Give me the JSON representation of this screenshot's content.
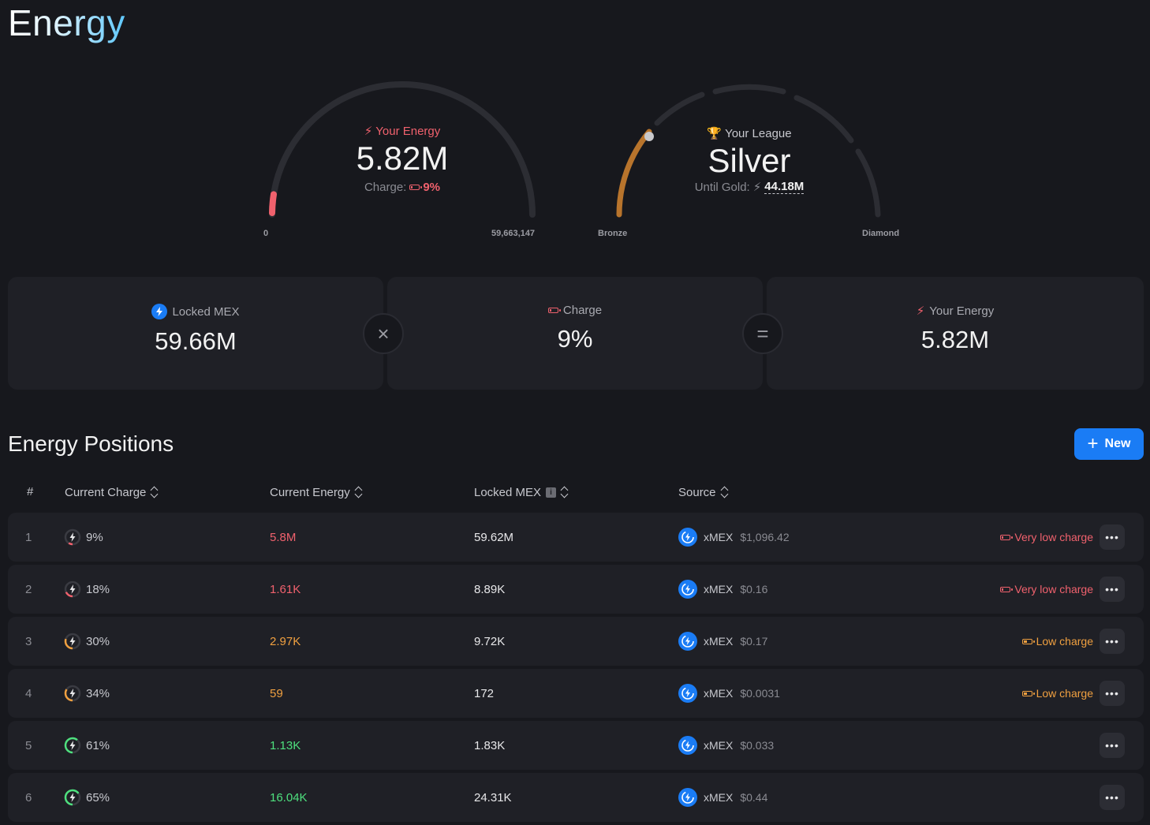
{
  "page": {
    "title": "Energy"
  },
  "energy_gauge": {
    "label": "Your Energy",
    "value": "5.82M",
    "charge_label": "Charge:",
    "charge_value": "9%",
    "charge_fraction": 0.09,
    "min_label": "0",
    "max_label": "59,663,147",
    "colors": {
      "fill": "#f0616d",
      "track": "#2c2d33"
    }
  },
  "league_gauge": {
    "label": "Your League",
    "value": "Silver",
    "until_label": "Until Gold:",
    "until_value": "44.18M",
    "min_label": "Bronze",
    "max_label": "Diamond",
    "colors": {
      "bronze": "#b8742c",
      "marker": "#c9c9cc",
      "track": "#2c2d33"
    }
  },
  "summary": {
    "locked_mex": {
      "label": "Locked MEX",
      "value": "59.66M",
      "icon": "xmex-icon"
    },
    "operator_multiply": "×",
    "charge": {
      "label": "Charge",
      "value": "9%",
      "icon": "battery-icon"
    },
    "operator_equals": "=",
    "your_energy": {
      "label": "Your Energy",
      "value": "5.82M",
      "icon": "bolt-icon"
    }
  },
  "positions": {
    "title": "Energy Positions",
    "new_button": "New",
    "columns": {
      "index": "#",
      "current_charge": "Current Charge",
      "current_energy": "Current Energy",
      "locked_mex": "Locked MEX",
      "source": "Source"
    },
    "rows": [
      {
        "index": "1",
        "charge": "9%",
        "charge_fraction": 0.09,
        "energy": "5.8M",
        "tone": "red",
        "locked": "59.62M",
        "source": "xMEX",
        "source_value": "$1,096.42",
        "status": "Very low charge"
      },
      {
        "index": "2",
        "charge": "18%",
        "charge_fraction": 0.18,
        "energy": "1.61K",
        "tone": "red",
        "locked": "8.89K",
        "source": "xMEX",
        "source_value": "$0.16",
        "status": "Very low charge"
      },
      {
        "index": "3",
        "charge": "30%",
        "charge_fraction": 0.3,
        "energy": "2.97K",
        "tone": "orange",
        "locked": "9.72K",
        "source": "xMEX",
        "source_value": "$0.17",
        "status": "Low charge"
      },
      {
        "index": "4",
        "charge": "34%",
        "charge_fraction": 0.34,
        "energy": "59",
        "tone": "orange",
        "locked": "172",
        "source": "xMEX",
        "source_value": "$0.0031",
        "status": "Low charge"
      },
      {
        "index": "5",
        "charge": "61%",
        "charge_fraction": 0.61,
        "energy": "1.13K",
        "tone": "green",
        "locked": "1.83K",
        "source": "xMEX",
        "source_value": "$0.033",
        "status": ""
      },
      {
        "index": "6",
        "charge": "65%",
        "charge_fraction": 0.65,
        "energy": "16.04K",
        "tone": "green",
        "locked": "24.31K",
        "source": "xMEX",
        "source_value": "$0.44",
        "status": ""
      }
    ],
    "more_label": "•••"
  },
  "tone_colors": {
    "red": "#f0616d",
    "orange": "#f0a040",
    "green": "#4ee07e",
    "accent": "#1a7cf5"
  }
}
